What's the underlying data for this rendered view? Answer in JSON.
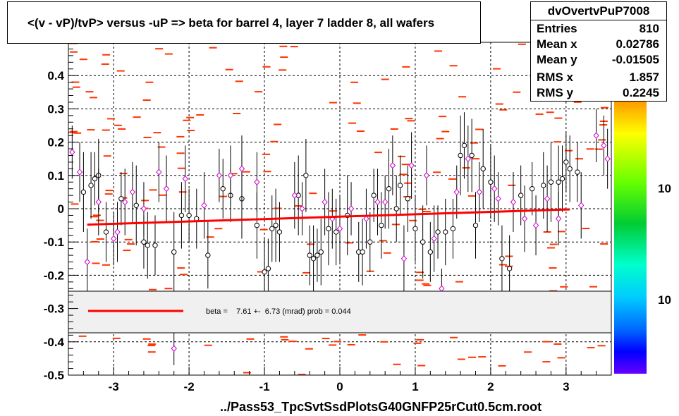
{
  "title": "<(v - vP)/tvP> versus  -uP => beta for barrel 4, layer 7 ladder 8, all wafers",
  "stats": {
    "name": "dvOvertvPuP7008",
    "rows": [
      {
        "key": "Entries",
        "value": "810"
      },
      {
        "key": "Mean x",
        "value": "0.02786"
      },
      {
        "key": "Mean y",
        "value": "-0.01505"
      },
      {
        "key": "RMS x",
        "value": "1.857"
      },
      {
        "key": "RMS y",
        "value": "0.2245"
      }
    ]
  },
  "x_title": "../Pass53_TpcSvtSsdPlotsG40GNFP25rCut0.5cm.root",
  "fit_text": "beta =    7.61 +-  6.73 (mrad) prob = 0.044",
  "palette_labels": [
    "10",
    "10"
  ],
  "colors": {
    "fit_line": "#ff0000",
    "hist_bins": "#ff3300",
    "profile_black": "#000000",
    "profile_magenta": "#cc00cc",
    "legend_bg": "#f0f0f0",
    "grid": "#000000"
  },
  "chart_data": {
    "type": "scatter",
    "title": "<(v - vP)/tvP> versus  -uP => beta for barrel 4, layer 7 ladder 8, all wafers",
    "xlabel": "../Pass53_TpcSvtSsdPlotsG40GNFP25rCut0.5cm.root",
    "ylabel": "",
    "xlim": [
      -3.6,
      3.6
    ],
    "ylim": [
      -0.5,
      0.5
    ],
    "x_ticks": [
      -3,
      -2,
      -1,
      0,
      1,
      2,
      3
    ],
    "x_tick_labels": [
      "-3",
      "-2",
      "-1",
      "0",
      "1",
      "2",
      "3"
    ],
    "y_ticks": [
      -0.5,
      -0.4,
      -0.3,
      -0.2,
      -0.1,
      0,
      0.1,
      0.2,
      0.3,
      0.4
    ],
    "y_tick_labels": [
      "-0.5",
      "-0.4",
      "-0.3",
      "-0.2",
      "-0.1",
      "0",
      "0.1",
      "0.2",
      "0.3",
      "0.4"
    ],
    "grid": true,
    "fit_line": {
      "x": [
        -3.35,
        3.05
      ],
      "y": [
        -0.048,
        -0.002
      ]
    },
    "series": [
      {
        "marker": "open-circle-black",
        "points": [
          [
            -3.4,
            0.05,
            0.12
          ],
          [
            -3.3,
            0.07,
            0.1
          ],
          [
            -3.25,
            0.09,
            0.08
          ],
          [
            -3.2,
            0.1,
            0.11
          ],
          [
            -3.1,
            -0.07,
            0.09
          ],
          [
            -2.9,
            0.03,
            0.08
          ],
          [
            -2.7,
            0.01,
            0.12
          ],
          [
            -2.6,
            -0.1,
            0.08
          ],
          [
            -2.55,
            -0.11,
            0.1
          ],
          [
            -2.45,
            -0.11,
            0.09
          ],
          [
            -2.2,
            -0.13,
            0.12
          ],
          [
            -2.1,
            -0.02,
            0.1
          ],
          [
            -2.0,
            -0.02,
            0.08
          ],
          [
            -1.9,
            -0.03,
            0.09
          ],
          [
            -1.75,
            -0.14,
            0.1
          ],
          [
            -1.55,
            0.06,
            0.09
          ],
          [
            -1.45,
            0.04,
            0.08
          ],
          [
            -1.3,
            0.03,
            0.12
          ],
          [
            -1.1,
            -0.05,
            0.1
          ],
          [
            -1.0,
            -0.19,
            0.1
          ],
          [
            -0.95,
            -0.18,
            0.09
          ],
          [
            -0.9,
            -0.06,
            0.1
          ],
          [
            -0.85,
            -0.05,
            0.11
          ],
          [
            -0.8,
            -0.07,
            0.09
          ],
          [
            -0.55,
            0.04,
            0.12
          ],
          [
            -0.45,
            0.1,
            0.11
          ],
          [
            -0.4,
            -0.14,
            0.09
          ],
          [
            -0.35,
            -0.15,
            0.1
          ],
          [
            -0.3,
            -0.14,
            0.08
          ],
          [
            -0.25,
            -0.13,
            0.1
          ],
          [
            -0.15,
            -0.06,
            0.11
          ],
          [
            -0.05,
            -0.07,
            0.1
          ],
          [
            0.1,
            -0.02,
            0.12
          ],
          [
            0.25,
            -0.13,
            0.09
          ],
          [
            0.3,
            -0.13,
            0.1
          ],
          [
            0.4,
            -0.1,
            0.09
          ],
          [
            0.45,
            0.04,
            0.08
          ],
          [
            0.55,
            -0.05,
            0.1
          ],
          [
            0.65,
            0.06,
            0.12
          ],
          [
            0.75,
            0.0,
            0.1
          ],
          [
            0.8,
            0.07,
            0.09
          ],
          [
            0.9,
            0.03,
            0.1
          ],
          [
            1.0,
            -0.06,
            0.1
          ],
          [
            1.1,
            -0.1,
            0.11
          ],
          [
            1.2,
            -0.13,
            0.09
          ],
          [
            1.3,
            -0.07,
            0.08
          ],
          [
            1.4,
            -0.07,
            0.1
          ],
          [
            1.5,
            -0.06,
            0.09
          ],
          [
            1.6,
            0.16,
            0.12
          ],
          [
            1.65,
            0.19,
            0.1
          ],
          [
            1.75,
            0.16,
            0.11
          ],
          [
            1.8,
            -0.05,
            0.1
          ],
          [
            1.9,
            0.12,
            0.12
          ],
          [
            2.0,
            0.08,
            0.11
          ],
          [
            2.15,
            -0.15,
            0.1
          ],
          [
            2.25,
            -0.18,
            0.1
          ],
          [
            2.4,
            0.04,
            0.09
          ],
          [
            2.55,
            0.06,
            0.08
          ],
          [
            2.7,
            0.07,
            0.1
          ],
          [
            2.8,
            0.08,
            0.12
          ],
          [
            2.9,
            0.08,
            0.11
          ],
          [
            2.95,
            0.09,
            0.1
          ],
          [
            3.0,
            0.14,
            0.09
          ],
          [
            3.05,
            0.12,
            0.1
          ],
          [
            3.15,
            0.11,
            0.09
          ]
        ]
      },
      {
        "marker": "open-diamond-magenta",
        "points": [
          [
            -3.55,
            0.17,
            0.08
          ],
          [
            -3.45,
            0.11,
            0.09
          ],
          [
            -3.35,
            -0.16,
            0.1
          ],
          [
            -3.2,
            0.02,
            0.1
          ],
          [
            -3.0,
            -0.09,
            0.08
          ],
          [
            -2.95,
            -0.07,
            0.09
          ],
          [
            -2.85,
            0.02,
            0.1
          ],
          [
            -2.75,
            0.05,
            0.09
          ],
          [
            -2.6,
            0.0,
            0.08
          ],
          [
            -2.4,
            0.11,
            0.09
          ],
          [
            -2.3,
            0.06,
            0.1
          ],
          [
            -2.2,
            -0.42,
            0.05
          ],
          [
            -2.05,
            0.09,
            0.1
          ],
          [
            -1.8,
            0.01,
            0.1
          ],
          [
            -1.6,
            0.1,
            0.08
          ],
          [
            -1.45,
            0.1,
            0.09
          ],
          [
            -1.3,
            0.12,
            0.1
          ],
          [
            -1.1,
            0.08,
            0.09
          ],
          [
            -0.6,
            0.04,
            0.1
          ],
          [
            -0.5,
            0.0,
            0.08
          ],
          [
            -0.2,
            0.02,
            0.1
          ],
          [
            -0.1,
            -0.03,
            0.09
          ],
          [
            0.0,
            -0.06,
            0.1
          ],
          [
            0.15,
            0.0,
            0.08
          ],
          [
            0.35,
            -0.03,
            0.09
          ],
          [
            0.5,
            0.02,
            0.1
          ],
          [
            0.6,
            0.02,
            0.08
          ],
          [
            0.7,
            0.13,
            0.09
          ],
          [
            0.85,
            -0.15,
            0.1
          ],
          [
            0.95,
            0.13,
            0.1
          ],
          [
            1.15,
            0.1,
            0.09
          ],
          [
            1.25,
            -0.09,
            0.1
          ],
          [
            1.35,
            -0.24,
            0.06
          ],
          [
            1.55,
            0.05,
            0.08
          ],
          [
            1.7,
            0.15,
            0.1
          ],
          [
            1.85,
            0.05,
            0.09
          ],
          [
            2.05,
            0.06,
            0.1
          ],
          [
            2.1,
            0.03,
            0.08
          ],
          [
            2.3,
            0.02,
            0.09
          ],
          [
            2.45,
            -0.03,
            0.1
          ],
          [
            2.6,
            -0.05,
            0.09
          ],
          [
            2.75,
            0.03,
            0.1
          ],
          [
            2.9,
            -0.03,
            0.08
          ],
          [
            3.2,
            0.01,
            0.1
          ],
          [
            3.4,
            0.22,
            0.08
          ],
          [
            3.5,
            0.19,
            0.09
          ],
          [
            3.55,
            0.15,
            0.09
          ]
        ]
      }
    ]
  }
}
